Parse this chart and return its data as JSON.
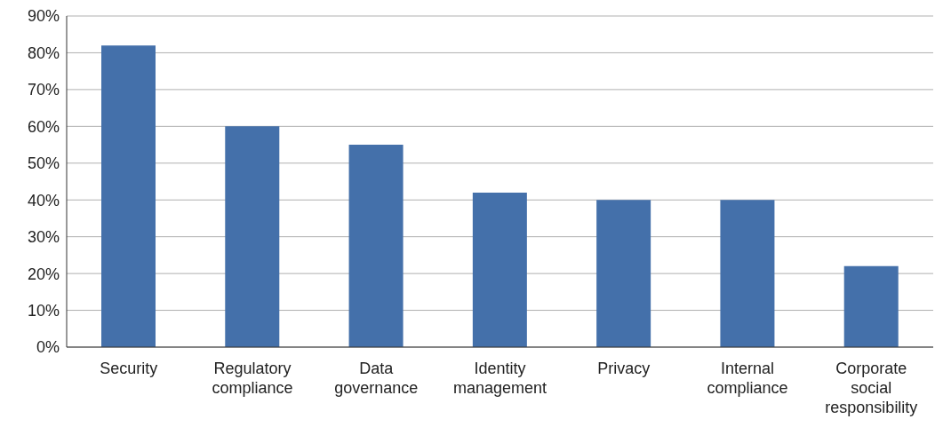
{
  "chart_data": {
    "type": "bar",
    "categories": [
      "Security",
      "Regulatory compliance",
      "Data governance",
      "Identity management",
      "Privacy",
      "Internal compliance",
      "Corporate social responsibility"
    ],
    "values": [
      82,
      60,
      55,
      42,
      40,
      40,
      22
    ],
    "color": "#4470aa",
    "ylim": [
      0,
      90
    ],
    "yticks": [
      {
        "value": 0,
        "label": "0%"
      },
      {
        "value": 10,
        "label": "10%"
      },
      {
        "value": 20,
        "label": "20%"
      },
      {
        "value": 30,
        "label": "30%"
      },
      {
        "value": 40,
        "label": "40%"
      },
      {
        "value": 50,
        "label": "50%"
      },
      {
        "value": 60,
        "label": "60%"
      },
      {
        "value": 70,
        "label": "70%"
      },
      {
        "value": 80,
        "label": "80%"
      },
      {
        "value": 90,
        "label": "90%"
      }
    ],
    "grid": "y",
    "legend": false
  }
}
